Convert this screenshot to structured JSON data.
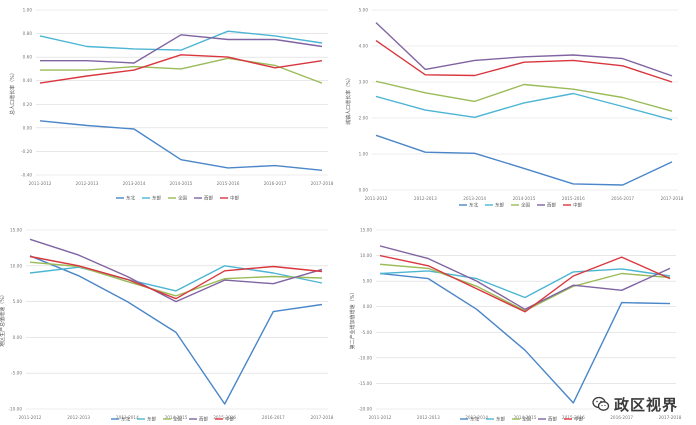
{
  "legend_colors": [
    "#4a86c8",
    "#4cb5d4",
    "#9bbb59",
    "#8064a2",
    "#d9363e"
  ],
  "watermark": {
    "text": "政区视界",
    "icon": "wechat-icon"
  },
  "chart_data": [
    {
      "type": "line",
      "title": "",
      "ylabel": "总人口增长率（%）",
      "categories": [
        "2011-2012",
        "2012-2013",
        "2013-2014",
        "2014-2015",
        "2015-2016",
        "2016-2017",
        "2017-2018"
      ],
      "ylim": [
        -0.4,
        1.0
      ],
      "yticks": [
        -0.4,
        -0.2,
        0.0,
        0.2,
        0.4,
        0.6,
        0.8,
        1.0
      ],
      "ytick_labels": [
        "-0.40",
        "-0.20",
        "0.00",
        "0.20",
        "0.40",
        "0.60",
        "0.80",
        "1.00"
      ],
      "series": [
        {
          "name": "东北",
          "values": [
            0.06,
            0.02,
            -0.01,
            -0.27,
            -0.34,
            -0.32,
            -0.36
          ]
        },
        {
          "name": "东部",
          "values": [
            0.78,
            0.69,
            0.67,
            0.66,
            0.82,
            0.78,
            0.72
          ]
        },
        {
          "name": "全国",
          "values": [
            0.49,
            0.49,
            0.52,
            0.5,
            0.59,
            0.53,
            0.38
          ]
        },
        {
          "name": "西部",
          "values": [
            0.57,
            0.57,
            0.55,
            0.79,
            0.75,
            0.75,
            0.69
          ]
        },
        {
          "name": "中部",
          "values": [
            0.38,
            0.44,
            0.49,
            0.62,
            0.6,
            0.51,
            0.57
          ]
        }
      ],
      "grid": true,
      "legend": "bottom"
    },
    {
      "type": "line",
      "title": "",
      "ylabel": "城镇人口增长率（%）",
      "categories": [
        "2011-2012",
        "2012-2013",
        "2013-2014",
        "2014-2015",
        "2015-2016",
        "2016-2017",
        "2017-2018"
      ],
      "ylim": [
        0.0,
        5.0
      ],
      "yticks": [
        0,
        1,
        2,
        3,
        4,
        5
      ],
      "ytick_labels": [
        "0.00",
        "1.00",
        "2.00",
        "3.00",
        "4.00",
        "5.00"
      ],
      "series": [
        {
          "name": "东北",
          "values": [
            1.52,
            1.05,
            1.02,
            0.6,
            0.17,
            0.14,
            0.78
          ]
        },
        {
          "name": "东部",
          "values": [
            2.6,
            2.22,
            2.02,
            2.42,
            2.68,
            2.32,
            1.95
          ]
        },
        {
          "name": "全国",
          "values": [
            3.02,
            2.7,
            2.46,
            2.93,
            2.8,
            2.57,
            2.19
          ]
        },
        {
          "name": "西部",
          "values": [
            4.65,
            3.35,
            3.6,
            3.7,
            3.75,
            3.65,
            3.17
          ]
        },
        {
          "name": "中部",
          "values": [
            4.15,
            3.2,
            3.18,
            3.55,
            3.6,
            3.45,
            3.0
          ]
        }
      ],
      "grid": true,
      "legend": "bottom"
    },
    {
      "type": "line",
      "title": "",
      "ylabel": "地区生产总值增速（%）",
      "categories": [
        "2011-2012",
        "2012-2013",
        "2013-2014",
        "2014-2015",
        "2015-2016",
        "2016-2017",
        "2017-2018"
      ],
      "ylim": [
        -10.0,
        15.0
      ],
      "yticks": [
        -10,
        -5,
        0,
        5,
        10,
        15
      ],
      "ytick_labels": [
        "-10.00",
        "-5.00",
        "0.00",
        "5.00",
        "10.00",
        "15.00"
      ],
      "series": [
        {
          "name": "东北",
          "values": [
            11.4,
            8.6,
            5.0,
            0.7,
            -9.3,
            3.6,
            4.6
          ]
        },
        {
          "name": "东部",
          "values": [
            9.0,
            9.8,
            8.1,
            6.5,
            10.0,
            9.0,
            7.6
          ]
        },
        {
          "name": "全国",
          "values": [
            10.5,
            9.9,
            7.8,
            5.8,
            8.2,
            8.5,
            8.3
          ]
        },
        {
          "name": "西部",
          "values": [
            13.7,
            11.5,
            8.5,
            5.0,
            8.0,
            7.5,
            9.5
          ]
        },
        {
          "name": "中部",
          "values": [
            11.3,
            10.0,
            8.1,
            5.4,
            9.3,
            9.9,
            9.2
          ]
        }
      ],
      "grid": true,
      "legend": "bottom"
    },
    {
      "type": "line",
      "title": "",
      "ylabel": "第二产业增加值增速（%）",
      "categories": [
        "2011-2012",
        "2012-2013",
        "2013-2014",
        "2014-2015",
        "2015-2016",
        "2016-2017",
        "2017-2018"
      ],
      "ylim": [
        -20.0,
        15.0
      ],
      "yticks": [
        -20,
        -15,
        -10,
        -5,
        0,
        5,
        10,
        15
      ],
      "ytick_labels": [
        "-20.00",
        "-15.00",
        "-10.00",
        "-5.00",
        "0.00",
        "5.00",
        "10.00",
        "15.00"
      ],
      "series": [
        {
          "name": "东北",
          "values": [
            6.5,
            5.5,
            -0.5,
            -8.5,
            -18.8,
            0.8,
            0.6
          ]
        },
        {
          "name": "东部",
          "values": [
            6.5,
            7.0,
            5.5,
            1.8,
            6.8,
            7.4,
            6.0
          ]
        },
        {
          "name": "全国",
          "values": [
            8.3,
            7.5,
            4.0,
            -0.8,
            4.0,
            6.5,
            5.7
          ]
        },
        {
          "name": "西部",
          "values": [
            11.9,
            9.4,
            5.0,
            -0.5,
            4.2,
            3.2,
            7.5
          ]
        },
        {
          "name": "中部",
          "values": [
            10.0,
            8.0,
            3.5,
            -1.0,
            6.0,
            9.7,
            5.5
          ]
        }
      ],
      "grid": true,
      "legend": "bottom"
    }
  ]
}
